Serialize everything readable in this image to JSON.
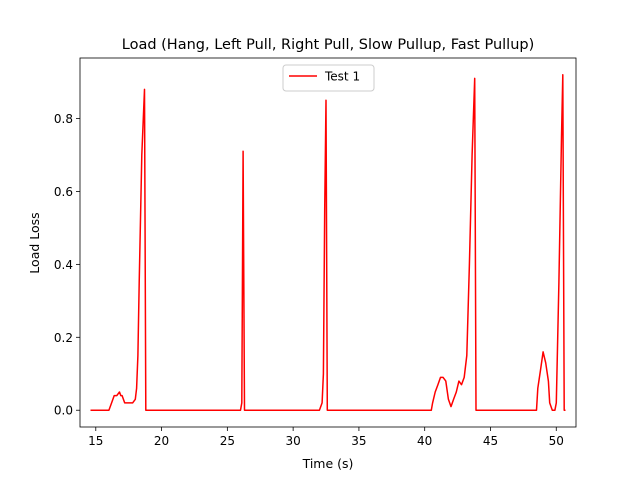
{
  "chart_data": {
    "type": "line",
    "title": "Load (Hang, Left Pull, Right Pull, Slow Pullup, Fast Pullup)",
    "xlabel": "Time (s)",
    "ylabel": "Load Loss",
    "xlim": [
      13.8,
      51.5
    ],
    "ylim": [
      -0.046,
      0.966
    ],
    "xticks": [
      15,
      20,
      25,
      30,
      35,
      40,
      45,
      50
    ],
    "yticks": [
      0.0,
      0.2,
      0.4,
      0.6,
      0.8
    ],
    "xtick_labels": [
      "15",
      "20",
      "25",
      "30",
      "35",
      "40",
      "45",
      "50"
    ],
    "ytick_labels": [
      "0.0",
      "0.2",
      "0.4",
      "0.6",
      "0.8"
    ],
    "grid": false,
    "legend_position": "top-center",
    "series": [
      {
        "name": "Test 1",
        "color": "#ff0000",
        "x": [
          14.6,
          16.0,
          16.2,
          16.4,
          16.6,
          16.8,
          16.9,
          17.0,
          17.2,
          17.5,
          17.8,
          18.0,
          18.1,
          18.2,
          18.3,
          18.5,
          18.7,
          18.8,
          19.0,
          26.0,
          26.1,
          26.2,
          26.3,
          26.5,
          32.0,
          32.2,
          32.3,
          32.4,
          32.5,
          32.6,
          32.7,
          40.5,
          40.6,
          40.8,
          41.0,
          41.2,
          41.4,
          41.6,
          41.8,
          42.0,
          42.2,
          42.4,
          42.6,
          42.8,
          43.0,
          43.2,
          43.4,
          43.6,
          43.8,
          43.9,
          44.0,
          48.5,
          48.6,
          48.8,
          49.0,
          49.2,
          49.4,
          49.5,
          49.7,
          49.9,
          50.0,
          50.2,
          50.4,
          50.5,
          50.6,
          50.7
        ],
        "y": [
          0.0,
          0.0,
          0.02,
          0.04,
          0.04,
          0.05,
          0.04,
          0.04,
          0.02,
          0.02,
          0.02,
          0.03,
          0.06,
          0.15,
          0.35,
          0.7,
          0.88,
          0.0,
          0.0,
          0.0,
          0.02,
          0.71,
          0.0,
          0.0,
          0.0,
          0.02,
          0.1,
          0.55,
          0.85,
          0.0,
          0.0,
          0.0,
          0.02,
          0.05,
          0.07,
          0.09,
          0.09,
          0.08,
          0.03,
          0.01,
          0.03,
          0.05,
          0.08,
          0.07,
          0.09,
          0.15,
          0.4,
          0.7,
          0.91,
          0.0,
          0.0,
          0.0,
          0.06,
          0.11,
          0.16,
          0.13,
          0.08,
          0.02,
          0.0,
          0.0,
          0.02,
          0.35,
          0.75,
          0.92,
          0.0,
          0.0
        ]
      }
    ]
  }
}
